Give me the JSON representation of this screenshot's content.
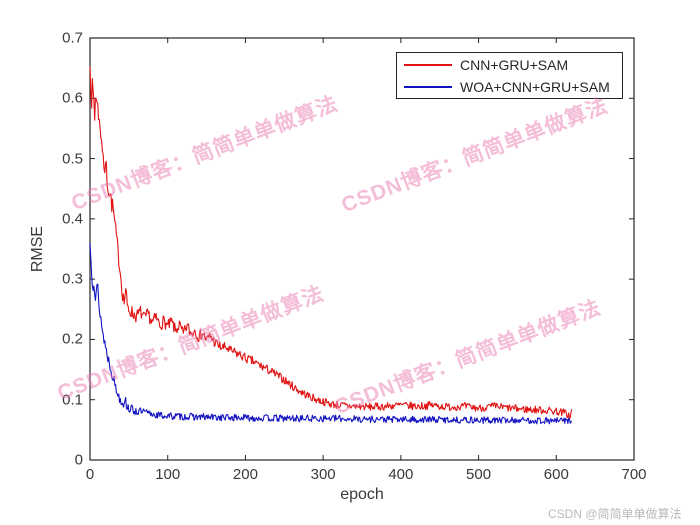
{
  "chart_data": {
    "type": "line",
    "title": "",
    "xlabel": "epoch",
    "ylabel": "RMSE",
    "xlim": [
      0,
      700
    ],
    "ylim": [
      0,
      0.7
    ],
    "xticks": [
      0,
      100,
      200,
      300,
      400,
      500,
      600,
      700
    ],
    "yticks": [
      "0",
      "0.1",
      "0.2",
      "0.3",
      "0.4",
      "0.5",
      "0.6",
      "0.7"
    ],
    "grid": false,
    "legend_position": "top-right",
    "axis_color": "#262626",
    "series": [
      {
        "name": "CNN+GRU+SAM",
        "color": "#e01212",
        "x_end": 620,
        "keypoints": [
          [
            0,
            0.672
          ],
          [
            1,
            0.63
          ],
          [
            2,
            0.565
          ],
          [
            3,
            0.625
          ],
          [
            5,
            0.6
          ],
          [
            6,
            0.565
          ],
          [
            7,
            0.61
          ],
          [
            9,
            0.585
          ],
          [
            10,
            0.6
          ],
          [
            12,
            0.555
          ],
          [
            14,
            0.545
          ],
          [
            16,
            0.52
          ],
          [
            18,
            0.49
          ],
          [
            19,
            0.46
          ],
          [
            20,
            0.5
          ],
          [
            22,
            0.465
          ],
          [
            24,
            0.45
          ],
          [
            26,
            0.44
          ],
          [
            28,
            0.425
          ],
          [
            30,
            0.415
          ],
          [
            32,
            0.39
          ],
          [
            34,
            0.37
          ],
          [
            36,
            0.345
          ],
          [
            38,
            0.325
          ],
          [
            40,
            0.3
          ],
          [
            42,
            0.275
          ],
          [
            44,
            0.262
          ],
          [
            46,
            0.285
          ],
          [
            48,
            0.252
          ],
          [
            52,
            0.248
          ],
          [
            56,
            0.242
          ],
          [
            60,
            0.238
          ],
          [
            65,
            0.246
          ],
          [
            70,
            0.234
          ],
          [
            75,
            0.242
          ],
          [
            80,
            0.228
          ],
          [
            85,
            0.236
          ],
          [
            90,
            0.224
          ],
          [
            95,
            0.231
          ],
          [
            100,
            0.221
          ],
          [
            105,
            0.229
          ],
          [
            110,
            0.214
          ],
          [
            115,
            0.224
          ],
          [
            120,
            0.208
          ],
          [
            125,
            0.223
          ],
          [
            130,
            0.209
          ],
          [
            135,
            0.216
          ],
          [
            140,
            0.204
          ],
          [
            145,
            0.211
          ],
          [
            150,
            0.199
          ],
          [
            155,
            0.206
          ],
          [
            160,
            0.196
          ],
          [
            165,
            0.19
          ],
          [
            170,
            0.186
          ],
          [
            175,
            0.187
          ],
          [
            180,
            0.181
          ],
          [
            185,
            0.179
          ],
          [
            190,
            0.176
          ],
          [
            195,
            0.173
          ],
          [
            200,
            0.169
          ],
          [
            210,
            0.163
          ],
          [
            220,
            0.156
          ],
          [
            230,
            0.149
          ],
          [
            240,
            0.141
          ],
          [
            250,
            0.133
          ],
          [
            260,
            0.123
          ],
          [
            270,
            0.114
          ],
          [
            280,
            0.107
          ],
          [
            290,
            0.101
          ],
          [
            300,
            0.097
          ],
          [
            310,
            0.093
          ],
          [
            320,
            0.091
          ],
          [
            340,
            0.089
          ],
          [
            360,
            0.088
          ],
          [
            380,
            0.089
          ],
          [
            400,
            0.091
          ],
          [
            420,
            0.089
          ],
          [
            440,
            0.091
          ],
          [
            460,
            0.088
          ],
          [
            480,
            0.089
          ],
          [
            500,
            0.086
          ],
          [
            520,
            0.089
          ],
          [
            540,
            0.086
          ],
          [
            560,
            0.084
          ],
          [
            580,
            0.083
          ],
          [
            600,
            0.081
          ],
          [
            612,
            0.078
          ],
          [
            618,
            0.072
          ],
          [
            620,
            0.082
          ]
        ],
        "noise": [
          [
            0,
            0.02
          ],
          [
            20,
            0.017
          ],
          [
            40,
            0.013
          ],
          [
            60,
            0.011
          ],
          [
            120,
            0.01
          ],
          [
            200,
            0.008
          ],
          [
            300,
            0.0065
          ],
          [
            620,
            0.0065
          ]
        ],
        "seed": 7
      },
      {
        "name": "WOA+CNN+GRU+SAM",
        "color": "#1212c0",
        "x_end": 620,
        "keypoints": [
          [
            0,
            0.358
          ],
          [
            2,
            0.318
          ],
          [
            3,
            0.3
          ],
          [
            4,
            0.292
          ],
          [
            5,
            0.3
          ],
          [
            7,
            0.268
          ],
          [
            8,
            0.278
          ],
          [
            10,
            0.288
          ],
          [
            11,
            0.262
          ],
          [
            12,
            0.252
          ],
          [
            14,
            0.236
          ],
          [
            16,
            0.212
          ],
          [
            18,
            0.202
          ],
          [
            20,
            0.188
          ],
          [
            22,
            0.176
          ],
          [
            25,
            0.161
          ],
          [
            28,
            0.146
          ],
          [
            31,
            0.131
          ],
          [
            34,
            0.116
          ],
          [
            37,
            0.106
          ],
          [
            40,
            0.099
          ],
          [
            43,
            0.094
          ],
          [
            45,
            0.103
          ],
          [
            47,
            0.091
          ],
          [
            50,
            0.086
          ],
          [
            55,
            0.083
          ],
          [
            60,
            0.081
          ],
          [
            70,
            0.079
          ],
          [
            80,
            0.076
          ],
          [
            90,
            0.074
          ],
          [
            100,
            0.073
          ],
          [
            120,
            0.072
          ],
          [
            150,
            0.071
          ],
          [
            200,
            0.07
          ],
          [
            250,
            0.069
          ],
          [
            300,
            0.069
          ],
          [
            350,
            0.068
          ],
          [
            400,
            0.067
          ],
          [
            450,
            0.067
          ],
          [
            500,
            0.066
          ],
          [
            550,
            0.066
          ],
          [
            600,
            0.065
          ],
          [
            620,
            0.066
          ]
        ],
        "noise": [
          [
            0,
            0.012
          ],
          [
            20,
            0.01
          ],
          [
            45,
            0.008
          ],
          [
            80,
            0.006
          ],
          [
            620,
            0.0055
          ]
        ],
        "seed": 13
      }
    ]
  },
  "watermark": {
    "diagonal_text": "CSDN博客：简简单单做算法",
    "corner_text": "CSDN @简简单单做算法",
    "diagonal_color": "#eb7db2",
    "corner_color": "#b9b9b9"
  }
}
